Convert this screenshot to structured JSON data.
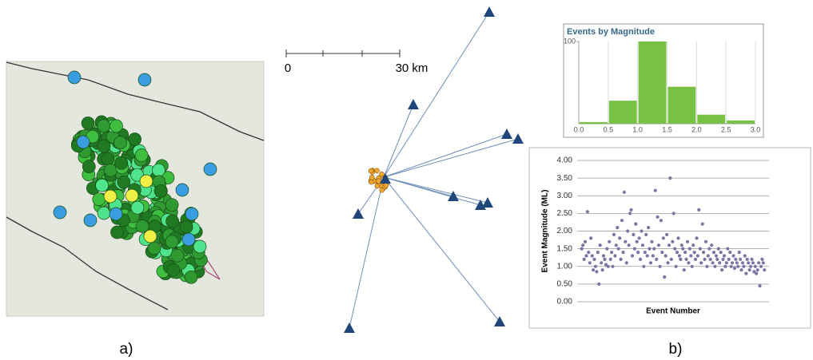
{
  "panel_labels": [
    "a)",
    "b)"
  ],
  "station_map": {
    "scale_labels": [
      "0",
      "30 km"
    ]
  },
  "chart_data": [
    {
      "type": "histogram",
      "title": "Events by Magnitude",
      "color": "#77c143",
      "bins": [
        0,
        0.5,
        1,
        1.5,
        2,
        2.5,
        3
      ],
      "values": [
        2,
        28,
        100,
        45,
        11,
        4
      ],
      "xlim": [
        0,
        3
      ],
      "xticks": [
        {
          "value": 0,
          "label": "0.0"
        },
        {
          "value": 0.5,
          "label": "0.5"
        },
        {
          "value": 1,
          "label": "1.0"
        },
        {
          "value": 1.5,
          "label": "1.5"
        },
        {
          "value": 2,
          "label": "2.0"
        },
        {
          "value": 2.5,
          "label": "2.5"
        },
        {
          "value": 3,
          "label": "3.0"
        }
      ],
      "ylim": [
        0,
        100
      ],
      "yticks": [
        100
      ],
      "grid": true
    },
    {
      "type": "scatter",
      "x_label": "Event Number",
      "y_label": "Event Magnitude (ML)",
      "color": "#7c74a3",
      "ylim": [
        0,
        4
      ],
      "yticks": [
        {
          "value": 0,
          "label": "0.00"
        },
        {
          "value": 0.5,
          "label": "0.50"
        },
        {
          "value": 1,
          "label": "1.00"
        },
        {
          "value": 1.5,
          "label": "1.50"
        },
        {
          "value": 2,
          "label": "2.00"
        },
        {
          "value": 2.5,
          "label": "2.50"
        },
        {
          "value": 3,
          "label": "3.00"
        },
        {
          "value": 3.5,
          "label": "3.50"
        },
        {
          "value": 4,
          "label": "4.00"
        }
      ],
      "grid": true,
      "values": [
        1.5,
        1.6,
        1.2,
        1.7,
        1.3,
        2.55,
        1.4,
        1.1,
        1.8,
        1.3,
        0.9,
        1.2,
        1.0,
        0.85,
        1.4,
        0.5,
        1.6,
        1.1,
        0.9,
        1.3,
        1.2,
        1.05,
        1.5,
        1.0,
        1.7,
        1.2,
        1.4,
        1.0,
        1.9,
        1.3,
        1.6,
        2.1,
        1.5,
        1.8,
        1.2,
        2.3,
        1.4,
        3.1,
        1.7,
        1.1,
        2.0,
        1.6,
        2.5,
        2.6,
        1.3,
        1.9,
        1.5,
        2.2,
        1.7,
        1.4,
        1.8,
        1.2,
        2.0,
        1.6,
        1.0,
        1.4,
        1.9,
        1.3,
        2.1,
        1.5,
        1.1,
        1.7,
        1.3,
        1.5,
        3.15,
        1.2,
        2.4,
        1.6,
        1.0,
        2.3,
        1.4,
        1.8,
        0.7,
        1.3,
        1.9,
        1.1,
        1.6,
        3.5,
        1.2,
        1.7,
        2.5,
        1.5,
        1.0,
        1.4,
        1.8,
        1.3,
        1.2,
        1.6,
        1.5,
        0.9,
        1.4,
        1.2,
        1.7,
        1.1,
        1.5,
        1.3,
        1.0,
        1.6,
        1.4,
        1.2,
        1.8,
        1.3,
        2.6,
        1.5,
        1.1,
        2.2,
        1.4,
        1.2,
        1.7,
        1.0,
        1.3,
        1.5,
        1.2,
        1.6,
        1.1,
        1.4,
        1.0,
        1.3,
        1.2,
        1.5,
        1.1,
        1.4,
        0.9,
        1.2,
        1.3,
        1.0,
        1.1,
        1.5,
        1.2,
        1.4,
        1.0,
        1.1,
        1.3,
        0.95,
        1.2,
        1.1,
        1.0,
        1.4,
        1.2,
        0.9,
        1.1,
        1.0,
        1.3,
        0.8,
        1.2,
        1.1,
        0.9,
        1.0,
        1.2,
        1.1,
        0.85,
        1.0,
        0.8,
        0.9,
        1.1,
        0.45,
        1.0,
        1.2,
        1.1,
        0.9
      ]
    }
  ]
}
